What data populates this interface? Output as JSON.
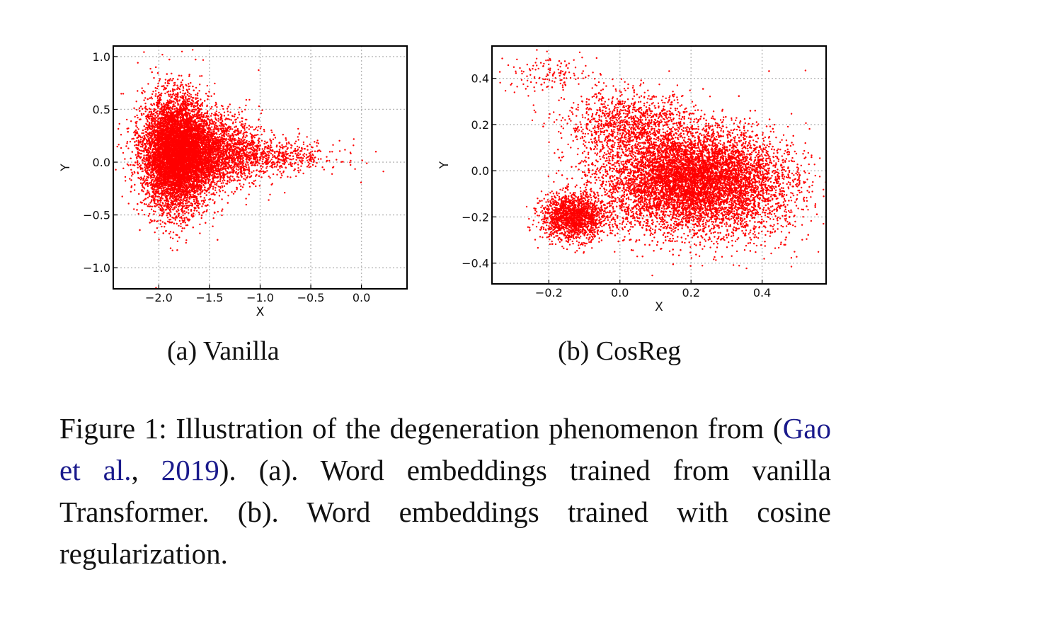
{
  "chart_data": [
    {
      "type": "scatter",
      "title": "",
      "xlabel": "X",
      "ylabel": "Y",
      "xlim": [
        -2.45,
        0.45
      ],
      "ylim": [
        -1.2,
        1.1
      ],
      "xticks": [
        -2.0,
        -1.5,
        -1.0,
        -0.5,
        0.0
      ],
      "xtick_labels": [
        "−2.0",
        "−1.5",
        "−1.0",
        "−0.5",
        "0.0"
      ],
      "yticks": [
        1.0,
        0.5,
        0.0,
        -0.5,
        -1.0
      ],
      "ytick_labels": [
        "1.0",
        "0.5",
        "0.0",
        "−0.5",
        "−1.0"
      ],
      "grid": true,
      "point_color": "#ff0000",
      "clusters": [
        {
          "center": [
            -1.83,
            0.08
          ],
          "spread": [
            0.16,
            0.27
          ],
          "weight": 0.7
        },
        {
          "center": [
            -1.55,
            0.1
          ],
          "spread": [
            0.28,
            0.18
          ],
          "weight": 0.25
        },
        {
          "center": [
            -0.9,
            0.05
          ],
          "spread": [
            0.35,
            0.08
          ],
          "weight": 0.05
        }
      ]
    },
    {
      "type": "scatter",
      "title": "",
      "xlabel": "X",
      "ylabel": "Y",
      "xlim": [
        -0.36,
        0.58
      ],
      "ylim": [
        -0.49,
        0.54
      ],
      "xticks": [
        -0.2,
        0.0,
        0.2,
        0.4
      ],
      "xtick_labels": [
        "−0.2",
        "0.0",
        "0.2",
        "0.4"
      ],
      "yticks": [
        0.4,
        0.2,
        0.0,
        -0.2,
        -0.4
      ],
      "ytick_labels": [
        "0.4",
        "0.2",
        "0.0",
        "−0.2",
        "−0.4"
      ],
      "grid": true,
      "point_color": "#ff0000",
      "clusters": [
        {
          "center": [
            0.19,
            -0.04
          ],
          "spread": [
            0.12,
            0.11
          ],
          "weight": 0.72
        },
        {
          "center": [
            -0.13,
            -0.2
          ],
          "spread": [
            0.045,
            0.05
          ],
          "weight": 0.12
        },
        {
          "center": [
            0.03,
            0.2
          ],
          "spread": [
            0.09,
            0.07
          ],
          "weight": 0.08
        },
        {
          "center": [
            -0.2,
            0.42
          ],
          "spread": [
            0.07,
            0.04
          ],
          "weight": 0.01
        },
        {
          "center": [
            0.35,
            -0.08
          ],
          "spread": [
            0.09,
            0.12
          ],
          "weight": 0.07
        }
      ]
    }
  ],
  "subcaptions": {
    "a": "(a) Vanilla",
    "b": "(b) CosReg"
  },
  "caption": {
    "prefix": "Figure 1: Illustration of the degeneration phenomenon from (",
    "citation_author": "Gao et al.",
    "citation_sep": ", ",
    "citation_year": "2019",
    "suffix": "). (a). Word embeddings trained from vanilla Transformer. (b). Word embeddings trained with cosine regularization."
  }
}
